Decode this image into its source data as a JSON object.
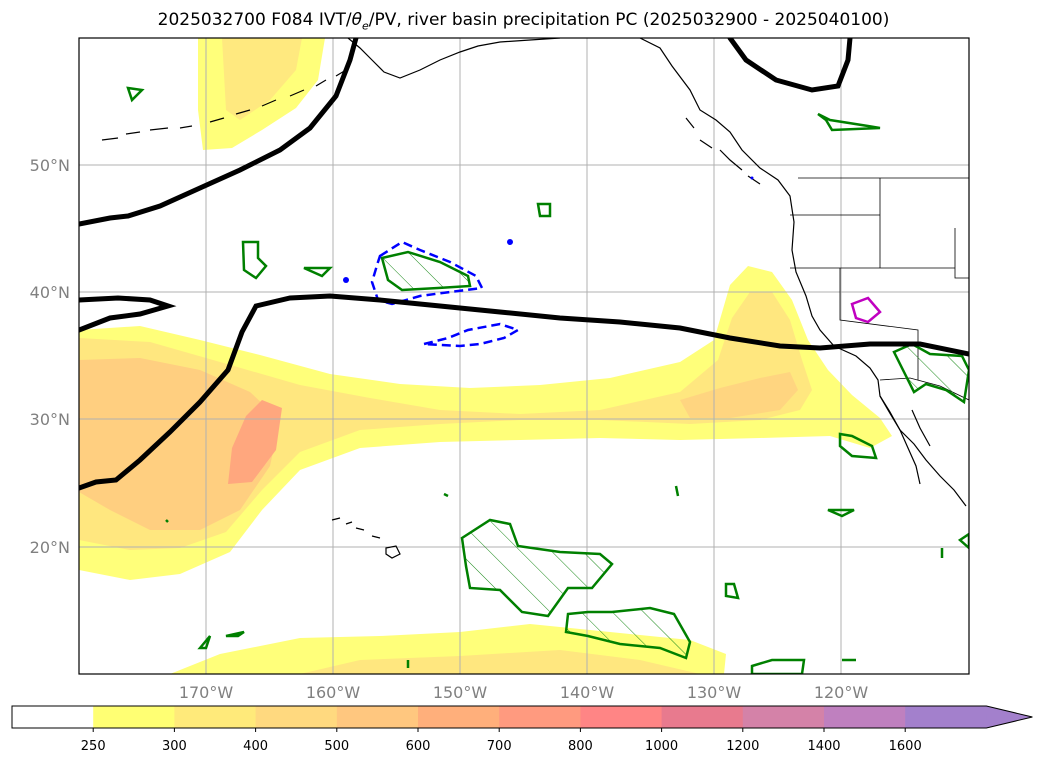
{
  "title": {
    "prefix": "2025032700 F084 IVT/",
    "theta": "θ",
    "sub": "e",
    "suffix": "/PV, river basin precipitation PC (2025032900 - 2025040100)"
  },
  "axes": {
    "lat_labels": [
      "50°N",
      "40°N",
      "30°N",
      "20°N"
    ],
    "lon_labels": [
      "170°W",
      "160°W",
      "150°W",
      "140°W",
      "130°W",
      "120°W"
    ]
  },
  "colorbar": {
    "levels": [
      "250",
      "300",
      "400",
      "500",
      "600",
      "700",
      "800",
      "1000",
      "1200",
      "1400",
      "1600"
    ],
    "colors": [
      "#ffffff",
      "#ffff73",
      "#ffea7a",
      "#ffd97f",
      "#ffc77f",
      "#ffaf7b",
      "#ff9a7f",
      "#ff8585",
      "#e87a8e",
      "#d482a8",
      "#bf80bf",
      "#a380cc"
    ],
    "extend": "max"
  },
  "map": {
    "theme_colors": {
      "ivt_light": "#ffff7a",
      "ivt_mid": "#ffe77f",
      "ivt_high": "#ffc880",
      "ivt_peak": "#ffa57e",
      "pv_contour": "#000000",
      "precip_contour": "#008000",
      "theta_dashed": "#0000ff",
      "highlight": "#c000c0"
    }
  }
}
